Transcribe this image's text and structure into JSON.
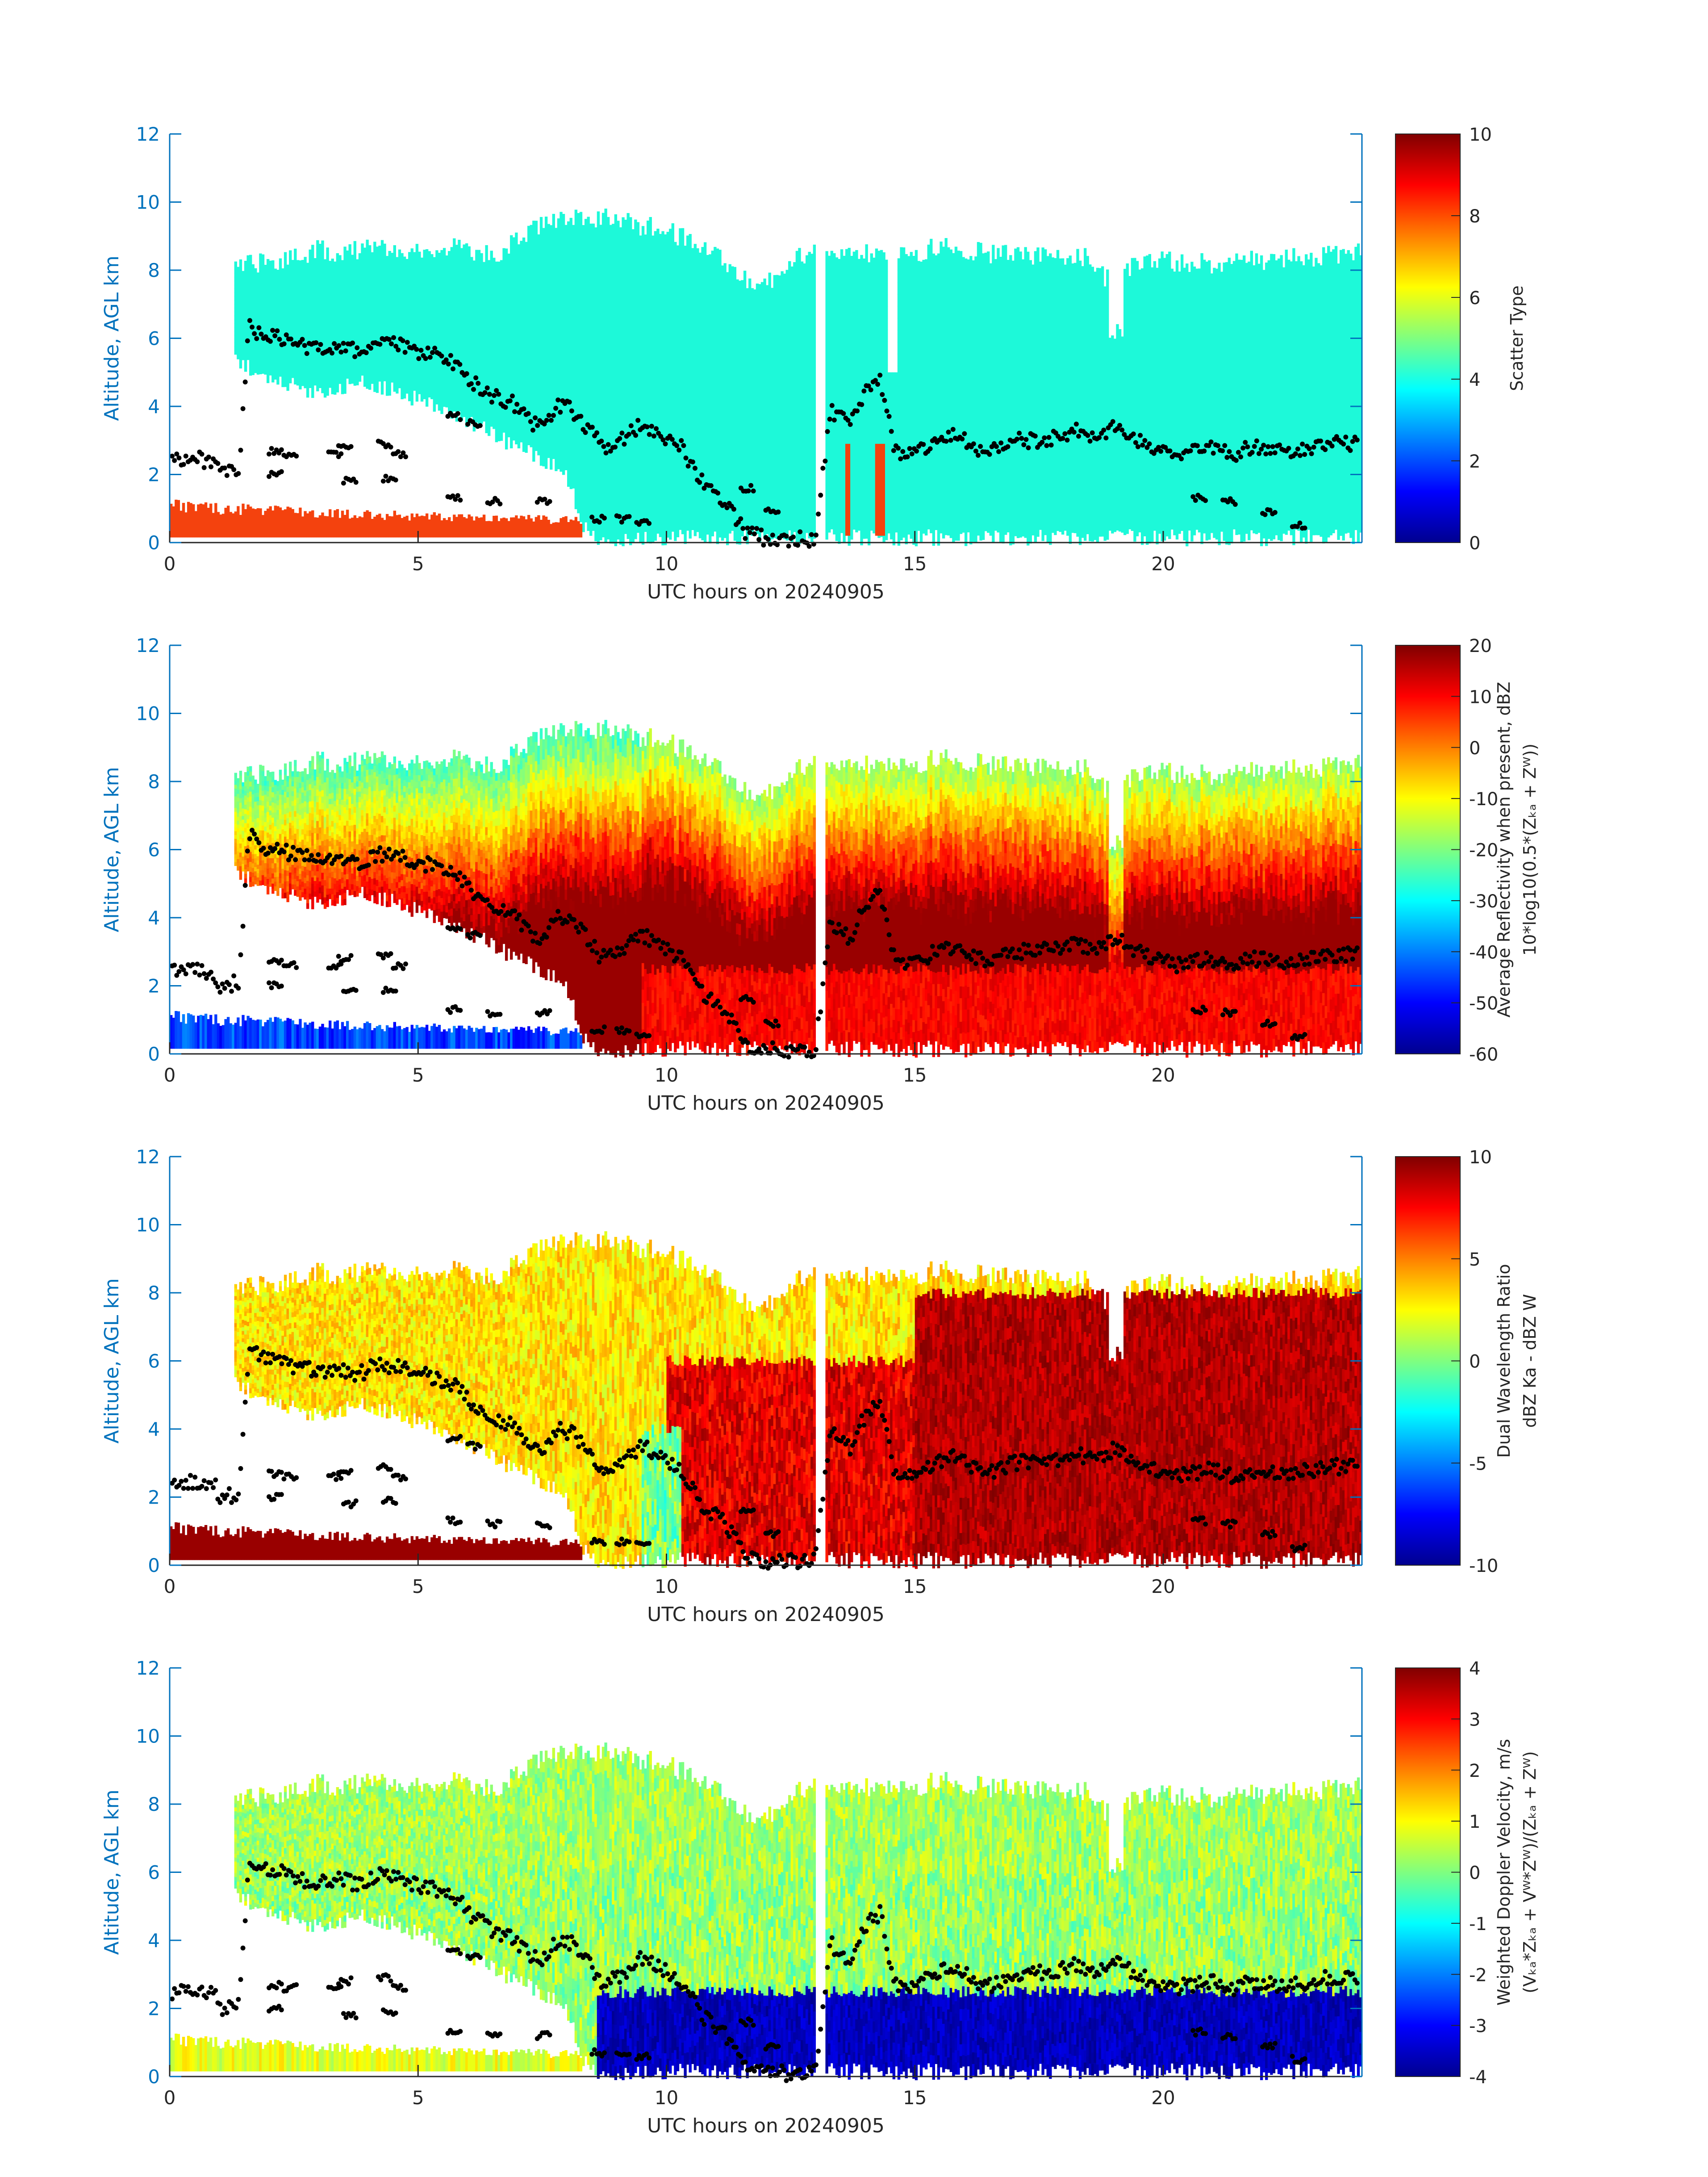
{
  "colors": {
    "axis_y": "#0072BD",
    "axis_x": "#262626",
    "scatter_cloud": "#1DF9D9",
    "scatter_surface": "#F4420E",
    "markers": "#000000",
    "missing": "#FFFFFF"
  },
  "chart_data": [
    {
      "type": "heatmap",
      "panel": "scatter-type",
      "xlabel": "UTC hours on 20240905",
      "ylabel": "Altitude, AGL km",
      "xlim": [
        0,
        24
      ],
      "ylim": [
        0,
        12
      ],
      "xticks": [
        0,
        5,
        10,
        15,
        20
      ],
      "yticks": [
        0,
        2,
        4,
        6,
        8,
        10,
        12
      ],
      "colorbar": {
        "label_lines": [
          "Scatter Type"
        ],
        "lim": [
          0,
          10
        ],
        "ticks": [
          0,
          2,
          4,
          6,
          8,
          10
        ],
        "colormap": "jet"
      },
      "field": "scatter-type",
      "grid": false
    },
    {
      "type": "heatmap",
      "panel": "average-reflectivity",
      "xlabel": "UTC hours on 20240905",
      "ylabel": "Altitude, AGL km",
      "xlim": [
        0,
        24
      ],
      "ylim": [
        0,
        12
      ],
      "xticks": [
        0,
        5,
        10,
        15,
        20
      ],
      "yticks": [
        0,
        2,
        4,
        6,
        8,
        10,
        12
      ],
      "colorbar": {
        "label_lines": [
          "Average Reflectivity when present, dBZ",
          "10*log10(0.5*(Zₖₐ + Zᵂ))"
        ],
        "lim": [
          -60,
          20
        ],
        "ticks": [
          -60,
          -50,
          -40,
          -30,
          -20,
          -10,
          0,
          10,
          20
        ],
        "colormap": "jet"
      },
      "field": "reflectivity",
      "grid": false
    },
    {
      "type": "heatmap",
      "panel": "dual-wavelength-ratio",
      "xlabel": "UTC hours on 20240905",
      "ylabel": "Altitude, AGL km",
      "xlim": [
        0,
        24
      ],
      "ylim": [
        0,
        12
      ],
      "xticks": [
        0,
        5,
        10,
        15,
        20
      ],
      "yticks": [
        0,
        2,
        4,
        6,
        8,
        10,
        12
      ],
      "colorbar": {
        "label_lines": [
          "Dual Wavelength Ratio",
          "dBZ Ka - dBZ W"
        ],
        "lim": [
          -10,
          10
        ],
        "ticks": [
          -10,
          -5,
          0,
          5,
          10
        ],
        "colormap": "jet"
      },
      "field": "dwr",
      "grid": false
    },
    {
      "type": "heatmap",
      "panel": "weighted-doppler-velocity",
      "xlabel": "UTC hours on 20240905",
      "ylabel": "Altitude, AGL km",
      "xlim": [
        0,
        24
      ],
      "ylim": [
        0,
        12
      ],
      "xticks": [
        0,
        5,
        10,
        15,
        20
      ],
      "yticks": [
        0,
        2,
        4,
        6,
        8,
        10,
        12
      ],
      "colorbar": {
        "label_lines": [
          "Weighted Doppler Velocity, m/s",
          "(Vₖₐ*Zₖₐ + Vᵂ*Zᵂ)/(Zₖₐ + Zᵂ)"
        ],
        "lim": [
          -4,
          4
        ],
        "ticks": [
          -4,
          -3,
          -2,
          -1,
          0,
          1,
          2,
          3,
          4
        ],
        "colormap": "jet"
      },
      "field": "doppler",
      "grid": false
    }
  ],
  "cloud_top_km": [
    [
      1.3,
      8.0
    ],
    [
      1.6,
      8.2
    ],
    [
      2.0,
      8.2
    ],
    [
      2.5,
      8.4
    ],
    [
      3.0,
      8.6
    ],
    [
      3.5,
      8.5
    ],
    [
      4.0,
      8.7
    ],
    [
      4.5,
      8.6
    ],
    [
      5.0,
      8.6
    ],
    [
      5.5,
      8.7
    ],
    [
      6.0,
      8.6
    ],
    [
      6.5,
      8.4
    ],
    [
      7.0,
      8.9
    ],
    [
      7.5,
      9.3
    ],
    [
      8.0,
      9.5
    ],
    [
      8.5,
      9.5
    ],
    [
      9.0,
      9.6
    ],
    [
      9.5,
      9.3
    ],
    [
      10.0,
      9.2
    ],
    [
      10.5,
      8.8
    ],
    [
      11.0,
      8.6
    ],
    [
      11.5,
      7.8
    ],
    [
      12.0,
      7.6
    ],
    [
      12.5,
      8.3
    ],
    [
      13.0,
      8.5
    ],
    [
      13.5,
      8.4
    ],
    [
      14.0,
      8.5
    ],
    [
      14.5,
      8.5
    ],
    [
      15.0,
      8.5
    ],
    [
      15.5,
      8.7
    ],
    [
      16.0,
      8.6
    ],
    [
      16.5,
      8.5
    ],
    [
      17.0,
      8.5
    ],
    [
      17.5,
      8.4
    ],
    [
      18.0,
      8.3
    ],
    [
      18.5,
      8.4
    ],
    [
      19.0,
      7.5
    ],
    [
      19.5,
      8.3
    ],
    [
      20.0,
      8.3
    ],
    [
      20.5,
      8.2
    ],
    [
      21.0,
      8.2
    ],
    [
      22.0,
      8.3
    ],
    [
      23.0,
      8.4
    ],
    [
      24.0,
      8.5
    ]
  ],
  "cloud_base_km": [
    [
      1.3,
      5.4
    ],
    [
      1.8,
      5.0
    ],
    [
      2.5,
      4.6
    ],
    [
      3.0,
      4.4
    ],
    [
      3.5,
      4.6
    ],
    [
      4.0,
      4.7
    ],
    [
      4.5,
      4.5
    ],
    [
      5.0,
      4.2
    ],
    [
      5.5,
      4.0
    ],
    [
      6.0,
      3.6
    ],
    [
      6.5,
      3.2
    ],
    [
      7.0,
      2.8
    ],
    [
      7.5,
      2.5
    ],
    [
      8.0,
      2.0
    ],
    [
      8.3,
      0.5
    ],
    [
      8.6,
      0.15
    ],
    [
      10.0,
      0.15
    ],
    [
      13.0,
      0.15
    ],
    [
      14.0,
      0.15
    ],
    [
      24.0,
      0.15
    ]
  ],
  "marker_track_km": [
    [
      0.0,
      2.5
    ],
    [
      0.5,
      2.45
    ],
    [
      0.9,
      2.4
    ],
    [
      1.0,
      2.0
    ],
    [
      1.4,
      2.1
    ],
    [
      1.6,
      6.5
    ],
    [
      1.8,
      6.1
    ],
    [
      2.2,
      6.0
    ],
    [
      2.6,
      5.8
    ],
    [
      3.0,
      5.7
    ],
    [
      3.4,
      5.8
    ],
    [
      3.8,
      5.6
    ],
    [
      4.2,
      5.9
    ],
    [
      4.6,
      5.8
    ],
    [
      5.0,
      5.6
    ],
    [
      5.4,
      5.5
    ],
    [
      5.8,
      5.2
    ],
    [
      6.1,
      4.7
    ],
    [
      6.5,
      4.3
    ],
    [
      6.9,
      4.1
    ],
    [
      7.2,
      3.6
    ],
    [
      7.5,
      3.4
    ],
    [
      7.8,
      4.0
    ],
    [
      8.1,
      3.9
    ],
    [
      8.4,
      3.4
    ],
    [
      8.7,
      2.8
    ],
    [
      9.1,
      3.0
    ],
    [
      9.5,
      3.5
    ],
    [
      9.9,
      3.2
    ],
    [
      10.3,
      2.8
    ],
    [
      10.7,
      1.8
    ],
    [
      11.2,
      1.2
    ],
    [
      11.6,
      0.3
    ],
    [
      12.0,
      0.12
    ],
    [
      12.5,
      0.1
    ],
    [
      13.0,
      0.12
    ],
    [
      13.3,
      3.9
    ],
    [
      13.7,
      3.4
    ],
    [
      14.0,
      4.4
    ],
    [
      14.3,
      4.8
    ],
    [
      14.6,
      2.7
    ],
    [
      15.0,
      2.6
    ],
    [
      15.4,
      3.0
    ],
    [
      15.8,
      3.2
    ],
    [
      16.2,
      2.8
    ],
    [
      16.6,
      2.7
    ],
    [
      17.0,
      3.0
    ],
    [
      17.4,
      3.0
    ],
    [
      17.8,
      3.1
    ],
    [
      18.2,
      3.3
    ],
    [
      18.6,
      3.1
    ],
    [
      19.0,
      3.4
    ],
    [
      19.4,
      3.1
    ],
    [
      19.8,
      2.8
    ],
    [
      20.2,
      2.6
    ],
    [
      20.6,
      2.7
    ],
    [
      21.0,
      2.8
    ],
    [
      21.4,
      2.6
    ],
    [
      21.8,
      2.8
    ],
    [
      22.2,
      2.7
    ],
    [
      22.6,
      2.7
    ],
    [
      23.0,
      2.8
    ],
    [
      23.4,
      2.9
    ],
    [
      23.8,
      2.9
    ],
    [
      24.0,
      3.0
    ]
  ],
  "low_layer_markers_km": [
    [
      2.0,
      2.7
    ],
    [
      2.3,
      2.6
    ],
    [
      3.2,
      2.6
    ],
    [
      3.4,
      2.8
    ],
    [
      4.2,
      2.9
    ],
    [
      4.5,
      2.6
    ],
    [
      5.6,
      3.7
    ],
    [
      6.0,
      3.5
    ],
    [
      2.0,
      2.0
    ],
    [
      3.5,
      1.8
    ],
    [
      4.3,
      1.9
    ],
    [
      5.6,
      1.3
    ],
    [
      6.4,
      1.2
    ],
    [
      7.4,
      1.2
    ],
    [
      8.5,
      0.7
    ],
    [
      9.0,
      0.7
    ],
    [
      9.4,
      0.6
    ],
    [
      11.5,
      1.6
    ],
    [
      12.0,
      0.9
    ],
    [
      20.6,
      1.3
    ],
    [
      21.2,
      1.2
    ],
    [
      22.0,
      0.9
    ],
    [
      22.6,
      0.5
    ]
  ],
  "surface_layer_km": [
    [
      0.0,
      1.2
    ],
    [
      2.0,
      1.0
    ],
    [
      4.0,
      0.9
    ],
    [
      6.0,
      0.8
    ],
    [
      8.3,
      0.7
    ]
  ]
}
